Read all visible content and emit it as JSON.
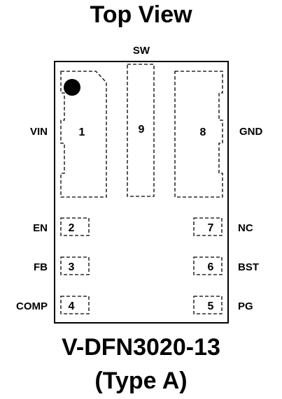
{
  "title": "Top View",
  "package": {
    "name": "V-DFN3020-13",
    "type": "(Type A)"
  },
  "pins": [
    {
      "num": "1",
      "name": "VIN"
    },
    {
      "num": "2",
      "name": "EN"
    },
    {
      "num": "3",
      "name": "FB"
    },
    {
      "num": "4",
      "name": "COMP"
    },
    {
      "num": "5",
      "name": "PG"
    },
    {
      "num": "6",
      "name": "BST"
    },
    {
      "num": "7",
      "name": "NC"
    },
    {
      "num": "8",
      "name": "GND"
    },
    {
      "num": "9",
      "name": "SW"
    }
  ]
}
